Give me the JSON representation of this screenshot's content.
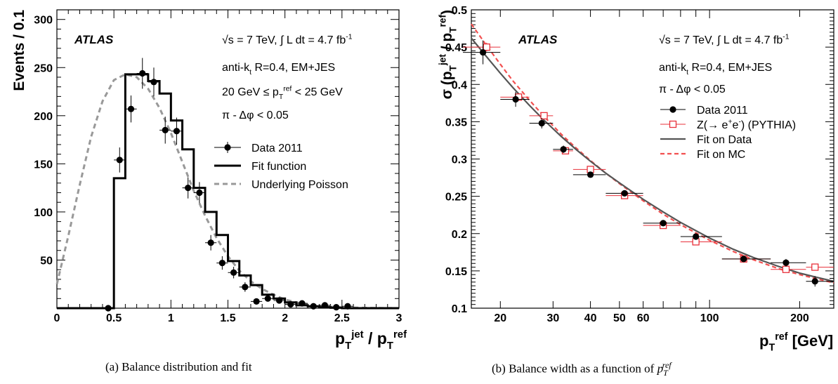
{
  "chart_data": [
    {
      "id": "a",
      "type": "line",
      "xlabel": "p_T^jet / p_T^ref",
      "ylabel": "Events / 0.1",
      "xlim": [
        0,
        3
      ],
      "ylim": [
        0,
        310
      ],
      "x_ticks": [
        "0",
        "0.5",
        "1",
        "1.5",
        "2",
        "2.5",
        "3"
      ],
      "y_ticks": [
        "50",
        "100",
        "150",
        "200",
        "250",
        "300"
      ],
      "atlas_label": "ATLAS",
      "annotations": [
        "√s = 7 TeV, ∫ L dt = 4.7 fb⁻¹",
        "anti-kt R=0.4, EM+JES",
        "20 GeV ≤ p_T^ref < 25 GeV",
        "π - Δφ < 0.05"
      ],
      "legend": [
        "Data 2011",
        "Fit function",
        "Underlying Poisson"
      ],
      "legend_position": "right",
      "series": [
        {
          "name": "Data 2011",
          "kind": "points",
          "color": "#000000",
          "x": [
            0.45,
            0.55,
            0.65,
            0.75,
            0.85,
            0.95,
            1.05,
            1.15,
            1.25,
            1.35,
            1.45,
            1.55,
            1.65,
            1.75,
            1.85,
            1.95,
            2.05,
            2.15,
            2.25,
            2.35,
            2.45,
            2.55
          ],
          "y": [
            0,
            154,
            207,
            244,
            235,
            185,
            184,
            125,
            120,
            68,
            47,
            37,
            22,
            7,
            10,
            8,
            4,
            5,
            2,
            3,
            1,
            2
          ],
          "yerr": [
            1,
            13,
            14,
            16,
            15,
            14,
            14,
            11,
            11,
            8,
            7,
            6,
            5,
            3,
            3,
            3,
            2,
            2,
            1.5,
            1.5,
            1,
            1
          ]
        },
        {
          "name": "Fit function",
          "kind": "step",
          "color": "#000000",
          "edges": [
            0,
            0.5,
            0.6,
            0.7,
            0.8,
            0.9,
            1.0,
            1.1,
            1.2,
            1.3,
            1.4,
            1.5,
            1.6,
            1.7,
            1.8,
            1.9,
            2.0,
            2.1,
            2.2,
            2.3,
            2.4,
            2.5,
            3.0
          ],
          "values": [
            0,
            135,
            243,
            243,
            236,
            223,
            195,
            165,
            125,
            100,
            76,
            49,
            34,
            24,
            14,
            10,
            6,
            3,
            2,
            1,
            0.5,
            0
          ]
        },
        {
          "name": "Underlying Poisson",
          "kind": "line",
          "color": "#999999",
          "x": [
            0.0,
            0.1,
            0.2,
            0.3,
            0.4,
            0.5,
            0.6,
            0.7,
            0.8,
            0.9,
            1.0,
            1.1,
            1.2,
            1.3,
            1.4,
            1.5,
            1.6,
            1.7,
            1.8,
            1.9,
            2.0,
            2.1,
            2.2,
            2.3,
            2.4,
            2.5,
            2.6,
            2.7,
            2.8,
            2.9,
            3.0
          ],
          "y": [
            25,
            75,
            128,
            178,
            215,
            237,
            243,
            240,
            228,
            208,
            182,
            152,
            122,
            96,
            73,
            54,
            39,
            28,
            20,
            14,
            9,
            6,
            4,
            2.5,
            1.5,
            1,
            0.6,
            0.4,
            0.2,
            0.1,
            0
          ]
        }
      ]
    },
    {
      "id": "b",
      "type": "scatter",
      "xlabel": "p_T^ref [GeV]",
      "ylabel": "σ (p_T^jet / p_T^ref)",
      "xscale": "log",
      "xlim": [
        16,
        260
      ],
      "ylim": [
        0.1,
        0.5
      ],
      "x_ticks": [
        "20",
        "30",
        "40",
        "50",
        "60",
        "100",
        "200"
      ],
      "y_ticks": [
        "0.1",
        "0.15",
        "0.2",
        "0.25",
        "0.3",
        "0.35",
        "0.4",
        "0.45",
        "0.5"
      ],
      "atlas_label": "ATLAS",
      "annotations": [
        "√s = 7 TeV, ∫ L dt = 4.7 fb⁻¹",
        "anti-kt R=0.4, EM+JES",
        "π - Δφ < 0.05"
      ],
      "legend": [
        "Data 2011",
        "Z(→ e⁺e⁻) (PYTHIA)",
        "Fit on Data",
        "Fit on MC"
      ],
      "legend_position": "right",
      "series": [
        {
          "name": "Data 2011",
          "kind": "points",
          "color": "#000000",
          "x": [
            17.5,
            22.5,
            27.5,
            32.5,
            40,
            52,
            70,
            90,
            130,
            180,
            225
          ],
          "xlo": [
            15,
            20,
            25,
            30,
            35,
            45,
            60,
            80,
            110,
            160,
            210
          ],
          "xhi": [
            20,
            25,
            30,
            35,
            45,
            60,
            80,
            110,
            160,
            210,
            260
          ],
          "y": [
            0.443,
            0.38,
            0.348,
            0.313,
            0.279,
            0.254,
            0.214,
            0.196,
            0.166,
            0.161,
            0.136
          ],
          "yerr": [
            0.016,
            0.01,
            0.007,
            0.005,
            0.004,
            0.004,
            0.004,
            0.004,
            0.004,
            0.005,
            0.007
          ]
        },
        {
          "name": "Z(→ e⁺e⁻) (PYTHIA)",
          "kind": "open_squares",
          "color": "#e8303a",
          "x": [
            18,
            23,
            28,
            33,
            40,
            52,
            70,
            90,
            130,
            180,
            225
          ],
          "xlo": [
            15,
            20,
            25,
            30,
            35,
            45,
            60,
            80,
            110,
            160,
            210
          ],
          "xhi": [
            20,
            25,
            30,
            35,
            45,
            60,
            80,
            110,
            160,
            210,
            260
          ],
          "y": [
            0.45,
            0.383,
            0.358,
            0.311,
            0.286,
            0.251,
            0.211,
            0.189,
            0.166,
            0.152,
            0.155
          ],
          "yerr": [
            0.006,
            0.005,
            0.004,
            0.003,
            0.003,
            0.002,
            0.002,
            0.002,
            0.002,
            0.002,
            0.002
          ]
        },
        {
          "name": "Fit on Data",
          "kind": "line",
          "color": "#555555",
          "x": [
            16,
            18,
            20,
            22,
            25,
            28,
            32,
            36,
            40,
            45,
            50,
            60,
            70,
            80,
            100,
            120,
            140,
            170,
            200,
            230,
            260
          ],
          "y": [
            0.462,
            0.437,
            0.415,
            0.396,
            0.372,
            0.352,
            0.33,
            0.312,
            0.297,
            0.281,
            0.268,
            0.246,
            0.229,
            0.215,
            0.194,
            0.179,
            0.168,
            0.156,
            0.147,
            0.141,
            0.136
          ]
        },
        {
          "name": "Fit on MC",
          "kind": "line",
          "color": "#f25050",
          "x": [
            16,
            18,
            20,
            22,
            25,
            28,
            32,
            36,
            40,
            45,
            50,
            60,
            70,
            80,
            100,
            120,
            140,
            170,
            200,
            230,
            260
          ],
          "y": [
            0.481,
            0.452,
            0.427,
            0.405,
            0.379,
            0.357,
            0.333,
            0.314,
            0.298,
            0.281,
            0.267,
            0.244,
            0.226,
            0.212,
            0.191,
            0.176,
            0.165,
            0.153,
            0.145,
            0.139,
            0.134
          ]
        }
      ]
    }
  ],
  "captions": {
    "a": "(a) Balance distribution and fit",
    "b_main": "(b) Balance width as a function of ",
    "b_sym": "p",
    "b_sup": "ref",
    "b_sub": "T"
  }
}
